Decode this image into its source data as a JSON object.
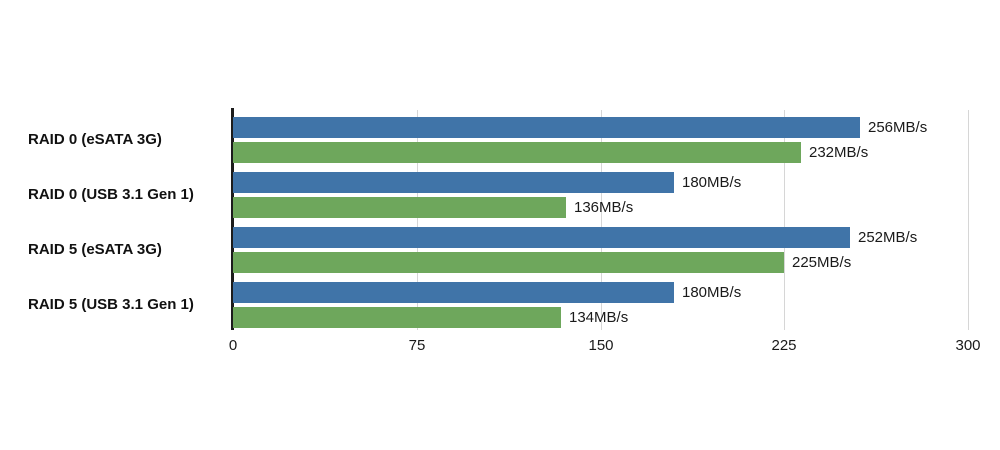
{
  "chart_data": {
    "type": "bar",
    "orientation": "horizontal",
    "title": "",
    "categories": [
      "RAID 0 (eSATA 3G)",
      "RAID 0 (USB 3.1 Gen 1)",
      "RAID 5 (eSATA 3G)",
      "RAID 5 (USB 3.1 Gen 1)"
    ],
    "series": [
      {
        "name": "blue",
        "color": "#4074a8",
        "values": [
          256,
          180,
          252,
          180
        ],
        "labels": [
          "256MB/s",
          "180MB/s",
          "252MB/s",
          "180MB/s"
        ]
      },
      {
        "name": "green",
        "color": "#6ea75c",
        "values": [
          232,
          136,
          225,
          134
        ],
        "labels": [
          "232MB/s",
          "136MB/s",
          "225MB/s",
          "134MB/s"
        ]
      }
    ],
    "value_unit": "MB/s",
    "xlim": [
      0,
      300
    ],
    "x_ticks": [
      0,
      75,
      150,
      225,
      300
    ],
    "x_tick_labels": [
      "0",
      "75",
      "150",
      "225",
      "300"
    ],
    "grid": true,
    "legend": "none"
  },
  "colors": {
    "background": "#ffffff",
    "axis": "#1c1c1c",
    "gridline": "#d6d6d6",
    "text": "#1a1a1a",
    "bar_blue": "#4074a8",
    "bar_green": "#6ea75c"
  }
}
